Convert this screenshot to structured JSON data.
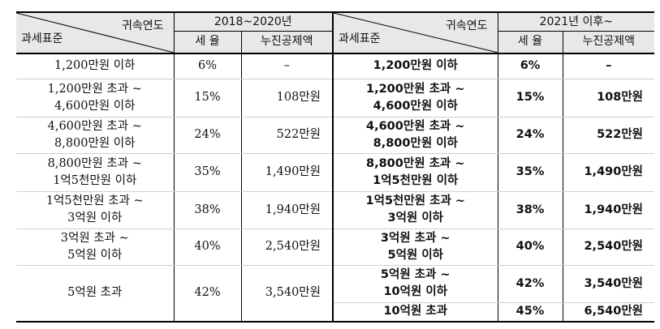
{
  "header": {
    "category_label": "귀속연도",
    "standard_label": "과세표준",
    "period_2018": "2018~2020년",
    "period_2021": "2021년 이후~",
    "rate_label": "세 율",
    "deduction_label": "누진공제액"
  },
  "rows_2018": [
    {
      "bracket": [
        "1,200만원 이하"
      ],
      "rate": "6%",
      "deduction": "–"
    },
    {
      "bracket": [
        "1,200만원 초과 ~",
        "4,600만원 이하"
      ],
      "rate": "15%",
      "deduction": "108만원"
    },
    {
      "bracket": [
        "4,600만원 초과 ~",
        "8,800만원 이하"
      ],
      "rate": "24%",
      "deduction": "522만원"
    },
    {
      "bracket": [
        "8,800만원 초과 ~",
        "1억5천만원 이하"
      ],
      "rate": "35%",
      "deduction": "1,490만원"
    },
    {
      "bracket": [
        "1억5천만원 초과 ~",
        "3억원 이하"
      ],
      "rate": "38%",
      "deduction": "1,940만원"
    },
    {
      "bracket": [
        "3억원 초과 ~",
        "5억원 이하"
      ],
      "rate": "40%",
      "deduction": "2,540만원"
    },
    {
      "bracket": [
        "5억원 초과"
      ],
      "rate": "42%",
      "deduction": "3,540만원"
    }
  ],
  "rows_2021": [
    {
      "bracket": [
        "1,200만원 이하"
      ],
      "rate": "6%",
      "deduction": "–"
    },
    {
      "bracket": [
        "1,200만원 초과 ~",
        "4,600만원 이하"
      ],
      "rate": "15%",
      "deduction": "108만원"
    },
    {
      "bracket": [
        "4,600만원 초과 ~",
        "8,800만원 이하"
      ],
      "rate": "24%",
      "deduction": "522만원"
    },
    {
      "bracket": [
        "8,800만원 초과 ~",
        "1억5천만원 이하"
      ],
      "rate": "35%",
      "deduction": "1,490만원"
    },
    {
      "bracket": [
        "1억5천만원 초과 ~",
        "3억원 이하"
      ],
      "rate": "38%",
      "deduction": "1,940만원"
    },
    {
      "bracket": [
        "3억원 초과 ~",
        "5억원 이하"
      ],
      "rate": "40%",
      "deduction": "2,540만원"
    },
    {
      "bracket": [
        "5억원 초과 ~",
        "10억원 이하"
      ],
      "rate": "42%",
      "deduction": "3,540만원"
    },
    {
      "bracket": [
        "10억원 초과"
      ],
      "rate": "45%",
      "deduction": "6,540만원"
    }
  ]
}
